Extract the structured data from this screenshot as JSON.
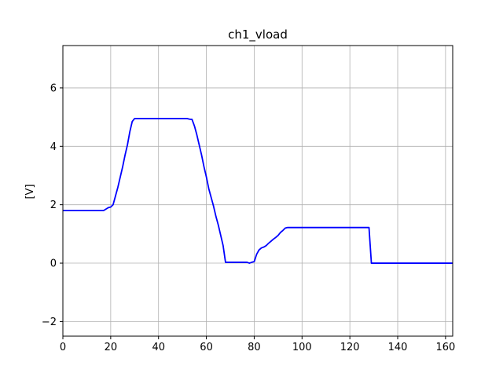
{
  "chart_data": {
    "type": "line",
    "title": "ch1_vload",
    "xlabel": "",
    "ylabel": "[V]",
    "xlim": [
      0,
      163
    ],
    "ylim": [
      -2.5,
      7.45
    ],
    "xticks": [
      0,
      20,
      40,
      60,
      80,
      100,
      120,
      140,
      160
    ],
    "yticks": [
      -2,
      0,
      2,
      4,
      6
    ],
    "ytick_labels": [
      "−2",
      "0",
      "2",
      "4",
      "6"
    ],
    "grid": true,
    "series": [
      {
        "color": "#0000ff",
        "x": [
          0,
          17,
          18,
          19,
          20,
          21,
          22,
          23,
          24,
          25,
          26,
          27,
          28,
          29,
          30,
          31,
          35,
          45,
          52,
          53,
          54,
          55,
          56,
          57,
          58,
          59,
          60,
          61,
          62,
          63,
          64,
          65,
          66,
          67,
          68,
          69,
          70,
          73,
          77,
          78,
          79,
          80,
          81,
          82,
          83,
          84,
          85,
          86,
          87,
          88,
          89,
          90,
          91,
          92,
          93,
          94,
          95,
          100,
          110,
          120,
          128,
          129,
          135,
          145,
          155,
          163
        ],
        "values": [
          1.8,
          1.8,
          1.85,
          1.9,
          1.92,
          2.0,
          2.3,
          2.6,
          2.95,
          3.3,
          3.7,
          4.05,
          4.5,
          4.85,
          4.95,
          4.95,
          4.95,
          4.95,
          4.95,
          4.93,
          4.92,
          4.7,
          4.4,
          4.05,
          3.7,
          3.3,
          2.95,
          2.55,
          2.25,
          1.95,
          1.6,
          1.3,
          0.95,
          0.6,
          0.03,
          0.03,
          0.03,
          0.03,
          0.03,
          0.0,
          0.03,
          0.05,
          0.3,
          0.45,
          0.52,
          0.55,
          0.6,
          0.68,
          0.75,
          0.82,
          0.88,
          0.95,
          1.05,
          1.12,
          1.2,
          1.22,
          1.22,
          1.22,
          1.22,
          1.22,
          1.22,
          0.0,
          0.0,
          0.0,
          0.0,
          0.0
        ]
      }
    ]
  }
}
